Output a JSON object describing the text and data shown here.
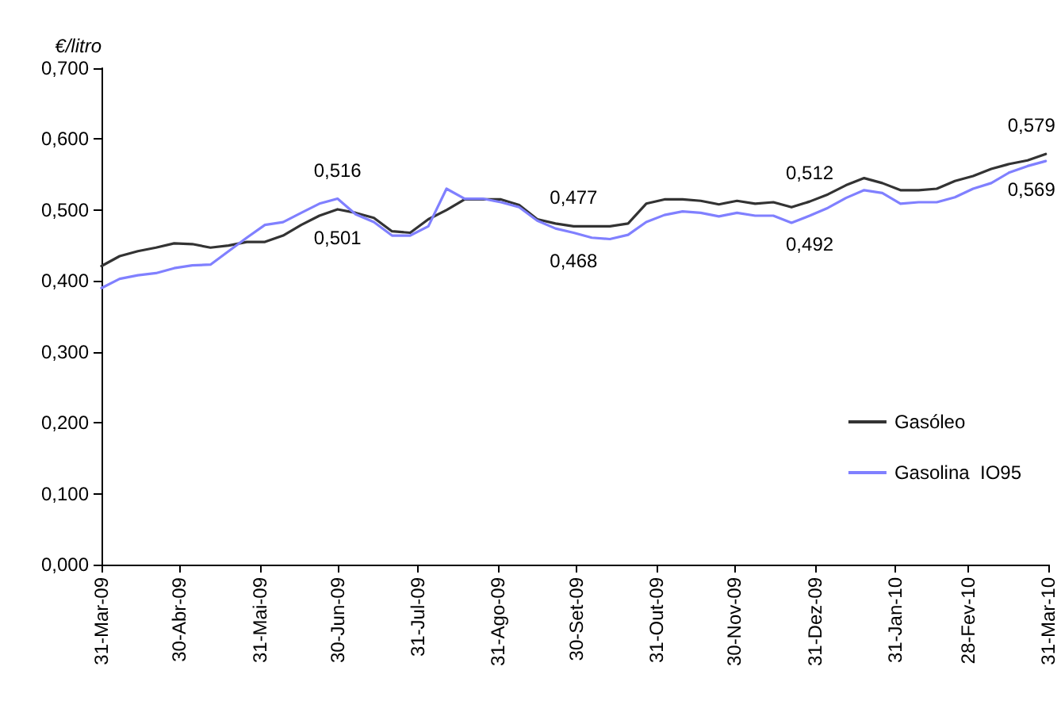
{
  "chart_data": {
    "type": "line",
    "ylabel": "€/litro",
    "x": [
      "2009-03-31",
      "2009-04-07",
      "2009-04-14",
      "2009-04-21",
      "2009-04-28",
      "2009-05-05",
      "2009-05-12",
      "2009-05-19",
      "2009-05-26",
      "2009-06-02",
      "2009-06-09",
      "2009-06-16",
      "2009-06-23",
      "2009-06-30",
      "2009-07-07",
      "2009-07-14",
      "2009-07-21",
      "2009-07-28",
      "2009-08-04",
      "2009-08-11",
      "2009-08-18",
      "2009-08-25",
      "2009-09-01",
      "2009-09-08",
      "2009-09-15",
      "2009-09-22",
      "2009-09-29",
      "2009-10-06",
      "2009-10-13",
      "2009-10-20",
      "2009-10-27",
      "2009-11-03",
      "2009-11-10",
      "2009-11-17",
      "2009-11-24",
      "2009-12-01",
      "2009-12-08",
      "2009-12-15",
      "2009-12-22",
      "2009-12-29",
      "2010-01-05",
      "2010-01-12",
      "2010-01-19",
      "2010-01-26",
      "2010-02-02",
      "2010-02-09",
      "2010-02-16",
      "2010-02-23",
      "2010-03-02",
      "2010-03-09",
      "2010-03-16",
      "2010-03-23",
      "2010-03-30"
    ],
    "series": [
      {
        "name": "Gasóleo",
        "color": "#333333",
        "values": [
          0.421,
          0.435,
          0.442,
          0.447,
          0.453,
          0.452,
          0.447,
          0.45,
          0.455,
          0.455,
          0.464,
          0.479,
          0.492,
          0.501,
          0.496,
          0.489,
          0.47,
          0.468,
          0.487,
          0.5,
          0.515,
          0.515,
          0.515,
          0.507,
          0.487,
          0.481,
          0.477,
          0.477,
          0.477,
          0.481,
          0.509,
          0.515,
          0.515,
          0.513,
          0.508,
          0.513,
          0.509,
          0.511,
          0.504,
          0.512,
          0.522,
          0.535,
          0.545,
          0.538,
          0.528,
          0.528,
          0.53,
          0.541,
          0.548,
          0.558,
          0.565,
          0.57,
          0.579
        ],
        "value_labels": [
          null,
          null,
          null,
          null,
          null,
          null,
          null,
          null,
          null,
          null,
          null,
          null,
          null,
          "0,501",
          null,
          null,
          null,
          null,
          null,
          null,
          null,
          null,
          null,
          null,
          null,
          null,
          "0,477",
          null,
          null,
          null,
          null,
          null,
          null,
          null,
          null,
          null,
          null,
          null,
          null,
          "0,512",
          null,
          null,
          null,
          null,
          null,
          null,
          null,
          null,
          null,
          null,
          null,
          null,
          "0,579"
        ]
      },
      {
        "name": "Gasolina  IO95",
        "color": "#8080ff",
        "values": [
          0.39,
          0.403,
          0.408,
          0.411,
          0.418,
          0.422,
          0.423,
          0.442,
          0.461,
          0.479,
          0.483,
          0.496,
          0.509,
          0.516,
          0.494,
          0.483,
          0.464,
          0.464,
          0.477,
          0.53,
          0.516,
          0.516,
          0.511,
          0.504,
          0.485,
          0.474,
          0.468,
          0.461,
          0.459,
          0.465,
          0.483,
          0.493,
          0.498,
          0.496,
          0.491,
          0.496,
          0.492,
          0.492,
          0.482,
          0.492,
          0.503,
          0.517,
          0.528,
          0.524,
          0.509,
          0.511,
          0.511,
          0.518,
          0.53,
          0.538,
          0.553,
          0.562,
          0.569
        ],
        "value_labels": [
          null,
          null,
          null,
          null,
          null,
          null,
          null,
          null,
          null,
          null,
          null,
          null,
          null,
          "0,516",
          null,
          null,
          null,
          null,
          null,
          null,
          null,
          null,
          null,
          null,
          null,
          null,
          "0,468",
          null,
          null,
          null,
          null,
          null,
          null,
          null,
          null,
          null,
          null,
          null,
          null,
          "0,492",
          null,
          null,
          null,
          null,
          null,
          null,
          null,
          null,
          null,
          null,
          null,
          null,
          "0,569"
        ]
      }
    ],
    "xlim": [
      "2009-03-31",
      "2010-03-31"
    ],
    "xticks": [
      {
        "value": "2009-03-31",
        "label": "31-Mar-09"
      },
      {
        "value": "2009-04-30",
        "label": "30-Abr-09"
      },
      {
        "value": "2009-05-31",
        "label": "31-Mai-09"
      },
      {
        "value": "2009-06-30",
        "label": "30-Jun-09"
      },
      {
        "value": "2009-07-31",
        "label": "31-Jul-09"
      },
      {
        "value": "2009-08-31",
        "label": "31-Ago-09"
      },
      {
        "value": "2009-09-30",
        "label": "30-Set-09"
      },
      {
        "value": "2009-10-31",
        "label": "31-Out-09"
      },
      {
        "value": "2009-11-30",
        "label": "30-Nov-09"
      },
      {
        "value": "2009-12-31",
        "label": "31-Dez-09"
      },
      {
        "value": "2010-01-31",
        "label": "31-Jan-10"
      },
      {
        "value": "2010-02-28",
        "label": "28-Fev-10"
      },
      {
        "value": "2010-03-31",
        "label": "31-Mar-10"
      }
    ],
    "ylim": [
      0,
      0.7
    ],
    "yticks": [
      {
        "value": 0,
        "label": "0,000"
      },
      {
        "value": 0.1,
        "label": "0,100"
      },
      {
        "value": 0.2,
        "label": "0,200"
      },
      {
        "value": 0.3,
        "label": "0,300"
      },
      {
        "value": 0.4,
        "label": "0,400"
      },
      {
        "value": 0.5,
        "label": "0,500"
      },
      {
        "value": 0.6,
        "label": "0,600"
      },
      {
        "value": 0.7,
        "label": "0,700"
      }
    ],
    "grid": false,
    "legend": "bottom right",
    "marker": "none",
    "line_style": "solid"
  }
}
